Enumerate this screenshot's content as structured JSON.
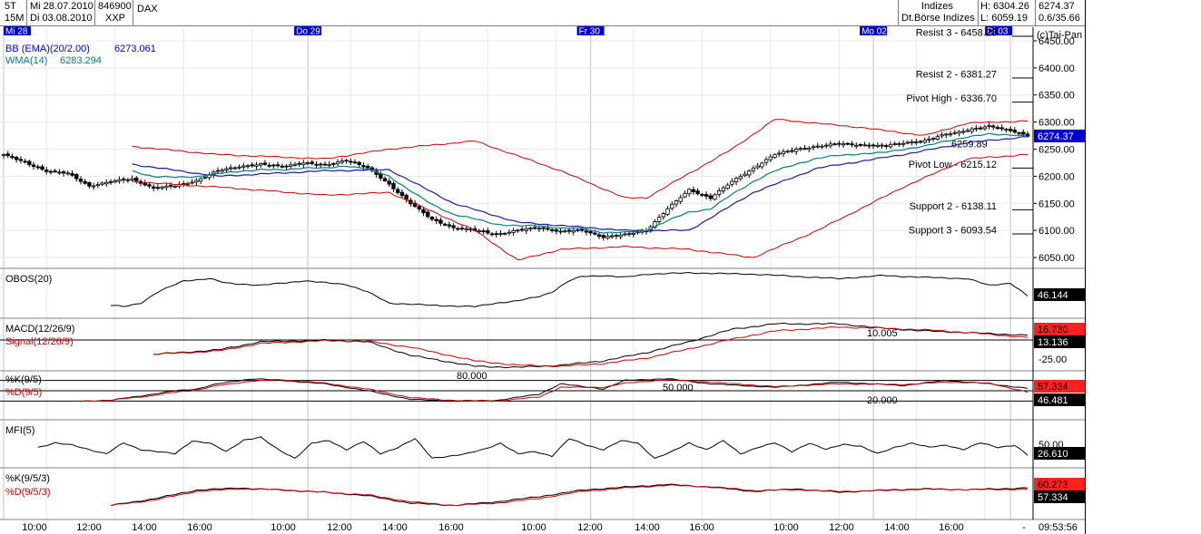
{
  "header": {
    "period_a": "5T",
    "period_b": "15M",
    "date_from": "Mi 28.07.2010",
    "date_to": "Di 03.08.2010",
    "code": "846900",
    "code2": "XXP",
    "name": "DAX",
    "category": "Indizes",
    "exchange": "Dt.Börse Indizes",
    "high": "H: 6304.26",
    "low": "L: 6059.19",
    "last": "6274.37",
    "change": "0.6/35.66"
  },
  "copyright": "(c)Tai-Pan",
  "day_labels": [
    "Mi 28",
    "Do 29",
    "Fr 30",
    "Mo 02",
    "Di 03"
  ],
  "time_labels": [
    "10:00",
    "12:00",
    "14:00",
    "16:00",
    "10:00",
    "12:00",
    "14:00",
    "16:00",
    "10:00",
    "12:00",
    "14:00",
    "16:00",
    "10:00",
    "12:00",
    "14:00",
    "16:00",
    "-"
  ],
  "clock": "09:53:56",
  "chart_data": [
    {
      "type": "candlestick",
      "title": "",
      "y_ticks": [
        "6450.00",
        "6400.00",
        "6350.00",
        "6300.00",
        "6250.00",
        "6200.00",
        "6150.00",
        "6100.00",
        "6050.00"
      ],
      "ylim": [
        6030,
        6475
      ],
      "legend": [
        {
          "label": "BB (EMA)(20/2.00)",
          "value": "6273.061",
          "color": "#0000cc"
        },
        {
          "label": "WMA(14)",
          "value": "6283.294",
          "color": "#008080"
        }
      ],
      "levels": [
        {
          "label": "Resist 3 - 6458.28",
          "value": 6458.28
        },
        {
          "label": "Resist 2 - 6381.27",
          "value": 6381.27
        },
        {
          "label": "Pivot High - 6336.70",
          "value": 6336.7
        },
        {
          "label": "6259.89",
          "value": 6259.89
        },
        {
          "label": "Pivot Low - 6215.12",
          "value": 6215.12
        },
        {
          "label": "Support 2 - 6138.11",
          "value": 6138.11
        },
        {
          "label": "Support 3 - 6093.54",
          "value": 6093.54
        }
      ],
      "last_value": "6274.37",
      "close_keypoints": [
        [
          0,
          6240
        ],
        [
          5,
          6225
        ],
        [
          10,
          6210
        ],
        [
          15,
          6205
        ],
        [
          20,
          6182
        ],
        [
          25,
          6190
        ],
        [
          30,
          6195
        ],
        [
          35,
          6178
        ],
        [
          40,
          6182
        ],
        [
          45,
          6192
        ],
        [
          50,
          6210
        ],
        [
          55,
          6218
        ],
        [
          60,
          6222
        ],
        [
          65,
          6218
        ],
        [
          70,
          6225
        ],
        [
          75,
          6220
        ],
        [
          80,
          6230
        ],
        [
          85,
          6215
        ],
        [
          90,
          6185
        ],
        [
          95,
          6150
        ],
        [
          100,
          6120
        ],
        [
          105,
          6105
        ],
        [
          110,
          6100
        ],
        [
          115,
          6093
        ],
        [
          120,
          6100
        ],
        [
          125,
          6105
        ],
        [
          130,
          6098
        ],
        [
          135,
          6100
        ],
        [
          140,
          6088
        ],
        [
          145,
          6092
        ],
        [
          150,
          6100
        ],
        [
          155,
          6140
        ],
        [
          160,
          6175
        ],
        [
          165,
          6160
        ],
        [
          170,
          6190
        ],
        [
          175,
          6215
        ],
        [
          180,
          6240
        ],
        [
          185,
          6250
        ],
        [
          190,
          6255
        ],
        [
          195,
          6260
        ],
        [
          200,
          6258
        ],
        [
          205,
          6255
        ],
        [
          210,
          6262
        ],
        [
          215,
          6265
        ],
        [
          220,
          6278
        ],
        [
          225,
          6285
        ],
        [
          230,
          6292
        ],
        [
          235,
          6285
        ],
        [
          239,
          6274
        ]
      ],
      "bb_upper_keypoints": [
        [
          30,
          6255
        ],
        [
          50,
          6240
        ],
        [
          75,
          6232
        ],
        [
          90,
          6250
        ],
        [
          110,
          6265
        ],
        [
          130,
          6210
        ],
        [
          145,
          6160
        ],
        [
          150,
          6160
        ],
        [
          170,
          6250
        ],
        [
          180,
          6305
        ],
        [
          200,
          6290
        ],
        [
          215,
          6275
        ],
        [
          225,
          6298
        ],
        [
          239,
          6302
        ]
      ],
      "bb_lower_keypoints": [
        [
          30,
          6190
        ],
        [
          50,
          6180
        ],
        [
          75,
          6165
        ],
        [
          90,
          6170
        ],
        [
          110,
          6100
        ],
        [
          120,
          6045
        ],
        [
          130,
          6065
        ],
        [
          145,
          6070
        ],
        [
          160,
          6065
        ],
        [
          175,
          6050
        ],
        [
          190,
          6100
        ],
        [
          210,
          6180
        ],
        [
          225,
          6232
        ],
        [
          239,
          6240
        ]
      ],
      "bb_mid_keypoints": [
        [
          30,
          6222
        ],
        [
          50,
          6200
        ],
        [
          75,
          6210
        ],
        [
          90,
          6212
        ],
        [
          105,
          6150
        ],
        [
          120,
          6115
        ],
        [
          145,
          6100
        ],
        [
          160,
          6100
        ],
        [
          175,
          6170
        ],
        [
          190,
          6215
        ],
        [
          210,
          6240
        ],
        [
          225,
          6262
        ],
        [
          239,
          6273
        ]
      ]
    },
    {
      "type": "line",
      "title": "OBOS(20)",
      "last_value": "46.144",
      "ylim": [
        0,
        100
      ],
      "keypoints": [
        [
          25,
          25
        ],
        [
          28,
          22
        ],
        [
          32,
          30
        ],
        [
          36,
          55
        ],
        [
          42,
          80
        ],
        [
          48,
          85
        ],
        [
          52,
          75
        ],
        [
          60,
          70
        ],
        [
          70,
          80
        ],
        [
          80,
          72
        ],
        [
          85,
          55
        ],
        [
          90,
          30
        ],
        [
          100,
          25
        ],
        [
          110,
          22
        ],
        [
          115,
          30
        ],
        [
          120,
          35
        ],
        [
          125,
          45
        ],
        [
          128,
          55
        ],
        [
          132,
          80
        ],
        [
          135,
          90
        ],
        [
          140,
          92
        ],
        [
          145,
          88
        ],
        [
          150,
          95
        ],
        [
          160,
          98
        ],
        [
          175,
          95
        ],
        [
          185,
          90
        ],
        [
          195,
          85
        ],
        [
          205,
          92
        ],
        [
          215,
          88
        ],
        [
          225,
          85
        ],
        [
          230,
          70
        ],
        [
          235,
          75
        ],
        [
          239,
          46
        ]
      ]
    },
    {
      "type": "line",
      "title": "MACD(12/26/9)",
      "signal_title": "Signal(12/26/9)",
      "level_label": "10.005",
      "tick_label": "-25.00",
      "macd_last": "16.730",
      "signal_last": "13.136",
      "ylim": [
        -50,
        50
      ],
      "macd_keypoints": [
        [
          35,
          -18
        ],
        [
          50,
          -10
        ],
        [
          60,
          5
        ],
        [
          75,
          8
        ],
        [
          85,
          5
        ],
        [
          95,
          -20
        ],
        [
          110,
          -40
        ],
        [
          120,
          -42
        ],
        [
          130,
          -38
        ],
        [
          140,
          -30
        ],
        [
          150,
          -15
        ],
        [
          160,
          5
        ],
        [
          170,
          28
        ],
        [
          180,
          38
        ],
        [
          195,
          38
        ],
        [
          205,
          30
        ],
        [
          215,
          25
        ],
        [
          225,
          22
        ],
        [
          239,
          17
        ]
      ],
      "signal_keypoints": [
        [
          35,
          -18
        ],
        [
          50,
          -12
        ],
        [
          60,
          2
        ],
        [
          75,
          7
        ],
        [
          85,
          6
        ],
        [
          95,
          -5
        ],
        [
          110,
          -30
        ],
        [
          120,
          -38
        ],
        [
          130,
          -40
        ],
        [
          140,
          -35
        ],
        [
          150,
          -25
        ],
        [
          160,
          -8
        ],
        [
          170,
          10
        ],
        [
          180,
          25
        ],
        [
          195,
          32
        ],
        [
          205,
          30
        ],
        [
          215,
          27
        ],
        [
          225,
          22
        ],
        [
          239,
          13
        ]
      ]
    },
    {
      "type": "line",
      "title": "%K(9/5)",
      "d_title": "%D(9/5)",
      "levels": [
        {
          "label": "80.000",
          "value": 80
        },
        {
          "label": "50.000",
          "value": 50
        },
        {
          "label": "20.000",
          "value": 20
        }
      ],
      "k_last": "57.334",
      "d_last": "46.481",
      "ylim": [
        0,
        100
      ],
      "k_keypoints": [
        [
          18,
          20
        ],
        [
          25,
          22
        ],
        [
          30,
          32
        ],
        [
          35,
          40
        ],
        [
          40,
          50
        ],
        [
          45,
          55
        ],
        [
          50,
          70
        ],
        [
          58,
          85
        ],
        [
          65,
          80
        ],
        [
          75,
          70
        ],
        [
          85,
          50
        ],
        [
          95,
          25
        ],
        [
          105,
          20
        ],
        [
          115,
          22
        ],
        [
          125,
          40
        ],
        [
          130,
          70
        ],
        [
          140,
          55
        ],
        [
          145,
          80
        ],
        [
          155,
          85
        ],
        [
          165,
          70
        ],
        [
          180,
          60
        ],
        [
          195,
          75
        ],
        [
          210,
          65
        ],
        [
          220,
          80
        ],
        [
          230,
          70
        ],
        [
          239,
          57
        ]
      ],
      "d_keypoints": [
        [
          18,
          20
        ],
        [
          25,
          22
        ],
        [
          30,
          30
        ],
        [
          35,
          36
        ],
        [
          40,
          46
        ],
        [
          45,
          52
        ],
        [
          50,
          65
        ],
        [
          58,
          78
        ],
        [
          65,
          82
        ],
        [
          75,
          72
        ],
        [
          85,
          55
        ],
        [
          95,
          30
        ],
        [
          105,
          22
        ],
        [
          115,
          20
        ],
        [
          125,
          32
        ],
        [
          130,
          60
        ],
        [
          140,
          60
        ],
        [
          145,
          72
        ],
        [
          155,
          82
        ],
        [
          165,
          75
        ],
        [
          180,
          62
        ],
        [
          195,
          70
        ],
        [
          210,
          68
        ],
        [
          220,
          75
        ],
        [
          230,
          72
        ],
        [
          239,
          46
        ]
      ]
    },
    {
      "type": "line",
      "title": "MFI(5)",
      "tick_label": "50.00",
      "last_value": "26.610",
      "ylim": [
        0,
        100
      ],
      "keypoints": [
        [
          8,
          45
        ],
        [
          12,
          55
        ],
        [
          16,
          50
        ],
        [
          20,
          40
        ],
        [
          24,
          30
        ],
        [
          28,
          55
        ],
        [
          32,
          40
        ],
        [
          36,
          35
        ],
        [
          40,
          30
        ],
        [
          44,
          60
        ],
        [
          48,
          55
        ],
        [
          52,
          35
        ],
        [
          56,
          62
        ],
        [
          60,
          68
        ],
        [
          64,
          40
        ],
        [
          68,
          20
        ],
        [
          72,
          55
        ],
        [
          76,
          60
        ],
        [
          80,
          40
        ],
        [
          84,
          58
        ],
        [
          88,
          30
        ],
        [
          92,
          45
        ],
        [
          96,
          65
        ],
        [
          100,
          20
        ],
        [
          104,
          25
        ],
        [
          108,
          30
        ],
        [
          112,
          40
        ],
        [
          116,
          55
        ],
        [
          120,
          30
        ],
        [
          124,
          35
        ],
        [
          128,
          25
        ],
        [
          132,
          65
        ],
        [
          136,
          50
        ],
        [
          140,
          40
        ],
        [
          144,
          60
        ],
        [
          148,
          55
        ],
        [
          152,
          20
        ],
        [
          156,
          35
        ],
        [
          160,
          55
        ],
        [
          164,
          40
        ],
        [
          168,
          60
        ],
        [
          172,
          30
        ],
        [
          176,
          45
        ],
        [
          180,
          55
        ],
        [
          184,
          35
        ],
        [
          188,
          55
        ],
        [
          192,
          40
        ],
        [
          196,
          52
        ],
        [
          200,
          48
        ],
        [
          204,
          30
        ],
        [
          208,
          45
        ],
        [
          212,
          55
        ],
        [
          216,
          45
        ],
        [
          220,
          50
        ],
        [
          224,
          40
        ],
        [
          228,
          55
        ],
        [
          232,
          45
        ],
        [
          236,
          50
        ],
        [
          239,
          27
        ]
      ]
    },
    {
      "type": "line",
      "title": "%K(9/5/3)",
      "d_title": "%D(9/5/3)",
      "k_last": "60.273",
      "d_last": "57.334",
      "ylim": [
        0,
        100
      ],
      "k_keypoints": [
        [
          25,
          20
        ],
        [
          35,
          35
        ],
        [
          45,
          55
        ],
        [
          55,
          60
        ],
        [
          65,
          55
        ],
        [
          75,
          50
        ],
        [
          85,
          42
        ],
        [
          95,
          25
        ],
        [
          105,
          20
        ],
        [
          115,
          28
        ],
        [
          125,
          40
        ],
        [
          135,
          55
        ],
        [
          145,
          62
        ],
        [
          155,
          68
        ],
        [
          165,
          62
        ],
        [
          175,
          52
        ],
        [
          185,
          58
        ],
        [
          195,
          50
        ],
        [
          205,
          55
        ],
        [
          215,
          58
        ],
        [
          225,
          56
        ],
        [
          239,
          60
        ]
      ],
      "d_keypoints": [
        [
          25,
          20
        ],
        [
          35,
          32
        ],
        [
          45,
          52
        ],
        [
          55,
          58
        ],
        [
          65,
          56
        ],
        [
          75,
          50
        ],
        [
          85,
          44
        ],
        [
          95,
          28
        ],
        [
          105,
          20
        ],
        [
          115,
          25
        ],
        [
          125,
          36
        ],
        [
          135,
          52
        ],
        [
          145,
          60
        ],
        [
          155,
          66
        ],
        [
          165,
          63
        ],
        [
          175,
          54
        ],
        [
          185,
          56
        ],
        [
          195,
          52
        ],
        [
          205,
          54
        ],
        [
          215,
          57
        ],
        [
          225,
          56
        ],
        [
          239,
          57
        ]
      ]
    }
  ]
}
